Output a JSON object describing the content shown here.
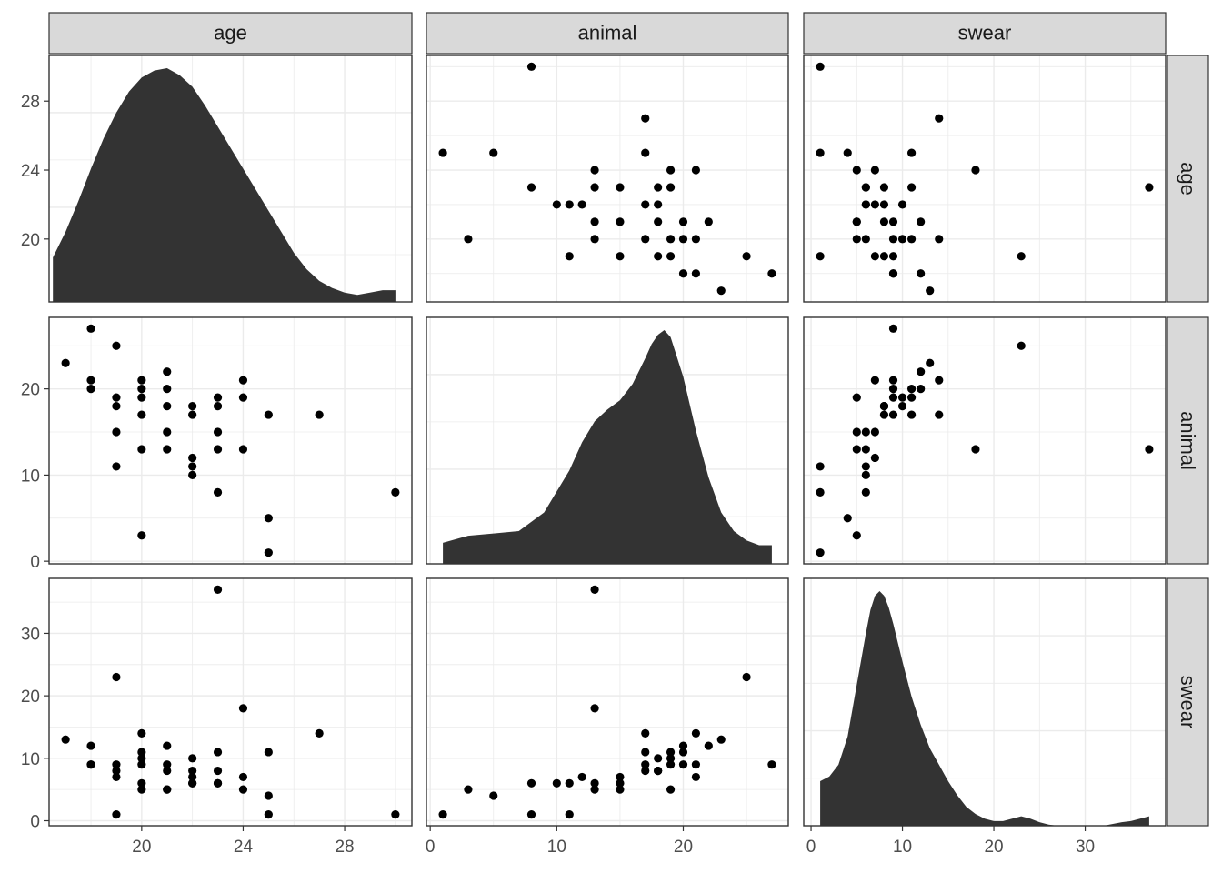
{
  "chart_data": {
    "type": "scatter",
    "layout": "pairs-matrix",
    "variables": [
      "age",
      "animal",
      "swear"
    ],
    "theme": "bw",
    "grid": true,
    "x_ticks": {
      "age": [
        20,
        24,
        28
      ],
      "animal": [
        0,
        10,
        20
      ],
      "swear": [
        0,
        10,
        20,
        30
      ]
    },
    "y_ticks": {
      "age": [
        20,
        24,
        28
      ],
      "animal": [
        0,
        10,
        20
      ],
      "swear": [
        0,
        10,
        20,
        30
      ]
    },
    "axis_ranges": {
      "age": [
        16.35,
        30.65
      ],
      "animal": [
        -0.3,
        28.3
      ],
      "swear": [
        -0.8,
        38.8
      ]
    },
    "densities": {
      "age": {
        "x": [
          16.5,
          17,
          17.5,
          18,
          18.5,
          19,
          19.5,
          20,
          20.5,
          21,
          21.5,
          22,
          22.5,
          23,
          23.5,
          24,
          24.5,
          25,
          25.5,
          26,
          26.5,
          27,
          27.5,
          28,
          28.5,
          29,
          29.5,
          30
        ],
        "y": [
          0.19,
          0.3,
          0.43,
          0.57,
          0.7,
          0.81,
          0.9,
          0.96,
          0.99,
          1.0,
          0.97,
          0.92,
          0.84,
          0.75,
          0.66,
          0.57,
          0.48,
          0.39,
          0.3,
          0.21,
          0.14,
          0.09,
          0.06,
          0.04,
          0.03,
          0.04,
          0.05,
          0.05
        ]
      },
      "animal": {
        "x": [
          1,
          3,
          5,
          7,
          9,
          11,
          12,
          13,
          14,
          15,
          16,
          17,
          17.5,
          18,
          18.5,
          19,
          20,
          21,
          22,
          23,
          24,
          25,
          26,
          27
        ],
        "y": [
          0.09,
          0.12,
          0.13,
          0.14,
          0.22,
          0.4,
          0.52,
          0.61,
          0.66,
          0.7,
          0.77,
          0.88,
          0.94,
          0.98,
          1.0,
          0.97,
          0.8,
          0.57,
          0.37,
          0.22,
          0.14,
          0.1,
          0.08,
          0.08
        ]
      },
      "swear": {
        "x": [
          1,
          2,
          3,
          4,
          5,
          6,
          6.5,
          7,
          7.5,
          8,
          8.5,
          9,
          10,
          11,
          12,
          13,
          14,
          15,
          16,
          17,
          18,
          19,
          20,
          21,
          22,
          23,
          24,
          25,
          26,
          27,
          28,
          30,
          32,
          34,
          35,
          36,
          37
        ],
        "y": [
          0.19,
          0.21,
          0.26,
          0.38,
          0.6,
          0.82,
          0.92,
          0.98,
          1.0,
          0.98,
          0.93,
          0.86,
          0.7,
          0.55,
          0.43,
          0.33,
          0.26,
          0.19,
          0.13,
          0.08,
          0.05,
          0.03,
          0.02,
          0.02,
          0.03,
          0.04,
          0.03,
          0.015,
          0.005,
          0.0,
          0.0,
          0.0,
          0.0,
          0.015,
          0.02,
          0.03,
          0.04
        ]
      }
    },
    "points": [
      {
        "age": 17,
        "animal": 23,
        "swear": 13
      },
      {
        "age": 18,
        "animal": 27,
        "swear": 9
      },
      {
        "age": 18,
        "animal": 21,
        "swear": 9
      },
      {
        "age": 18,
        "animal": 20,
        "swear": 12
      },
      {
        "age": 19,
        "animal": 25,
        "swear": 23
      },
      {
        "age": 19,
        "animal": 19,
        "swear": 9
      },
      {
        "age": 19,
        "animal": 18,
        "swear": 8
      },
      {
        "age": 19,
        "animal": 15,
        "swear": 7
      },
      {
        "age": 19,
        "animal": 11,
        "swear": 1
      },
      {
        "age": 20,
        "animal": 21,
        "swear": 14
      },
      {
        "age": 20,
        "animal": 20,
        "swear": 11
      },
      {
        "age": 20,
        "animal": 19,
        "swear": 10
      },
      {
        "age": 20,
        "animal": 17,
        "swear": 9
      },
      {
        "age": 20,
        "animal": 13,
        "swear": 6
      },
      {
        "age": 20,
        "animal": 3,
        "swear": 5
      },
      {
        "age": 21,
        "animal": 22,
        "swear": 12
      },
      {
        "age": 21,
        "animal": 20,
        "swear": 9
      },
      {
        "age": 21,
        "animal": 18,
        "swear": 8
      },
      {
        "age": 21,
        "animal": 15,
        "swear": 5
      },
      {
        "age": 21,
        "animal": 13,
        "swear": 5
      },
      {
        "age": 22,
        "animal": 18,
        "swear": 10
      },
      {
        "age": 22,
        "animal": 17,
        "swear": 8
      },
      {
        "age": 22,
        "animal": 12,
        "swear": 7
      },
      {
        "age": 22,
        "animal": 11,
        "swear": 6
      },
      {
        "age": 22,
        "animal": 10,
        "swear": 6
      },
      {
        "age": 23,
        "animal": 19,
        "swear": 11
      },
      {
        "age": 23,
        "animal": 18,
        "swear": 8
      },
      {
        "age": 23,
        "animal": 15,
        "swear": 6
      },
      {
        "age": 23,
        "animal": 13,
        "swear": 37
      },
      {
        "age": 23,
        "animal": 8,
        "swear": 6
      },
      {
        "age": 24,
        "animal": 21,
        "swear": 7
      },
      {
        "age": 24,
        "animal": 19,
        "swear": 5
      },
      {
        "age": 24,
        "animal": 13,
        "swear": 18
      },
      {
        "age": 25,
        "animal": 17,
        "swear": 11
      },
      {
        "age": 25,
        "animal": 5,
        "swear": 4
      },
      {
        "age": 25,
        "animal": 1,
        "swear": 1
      },
      {
        "age": 27,
        "animal": 17,
        "swear": 14
      },
      {
        "age": 30,
        "animal": 8,
        "swear": 1
      }
    ]
  }
}
